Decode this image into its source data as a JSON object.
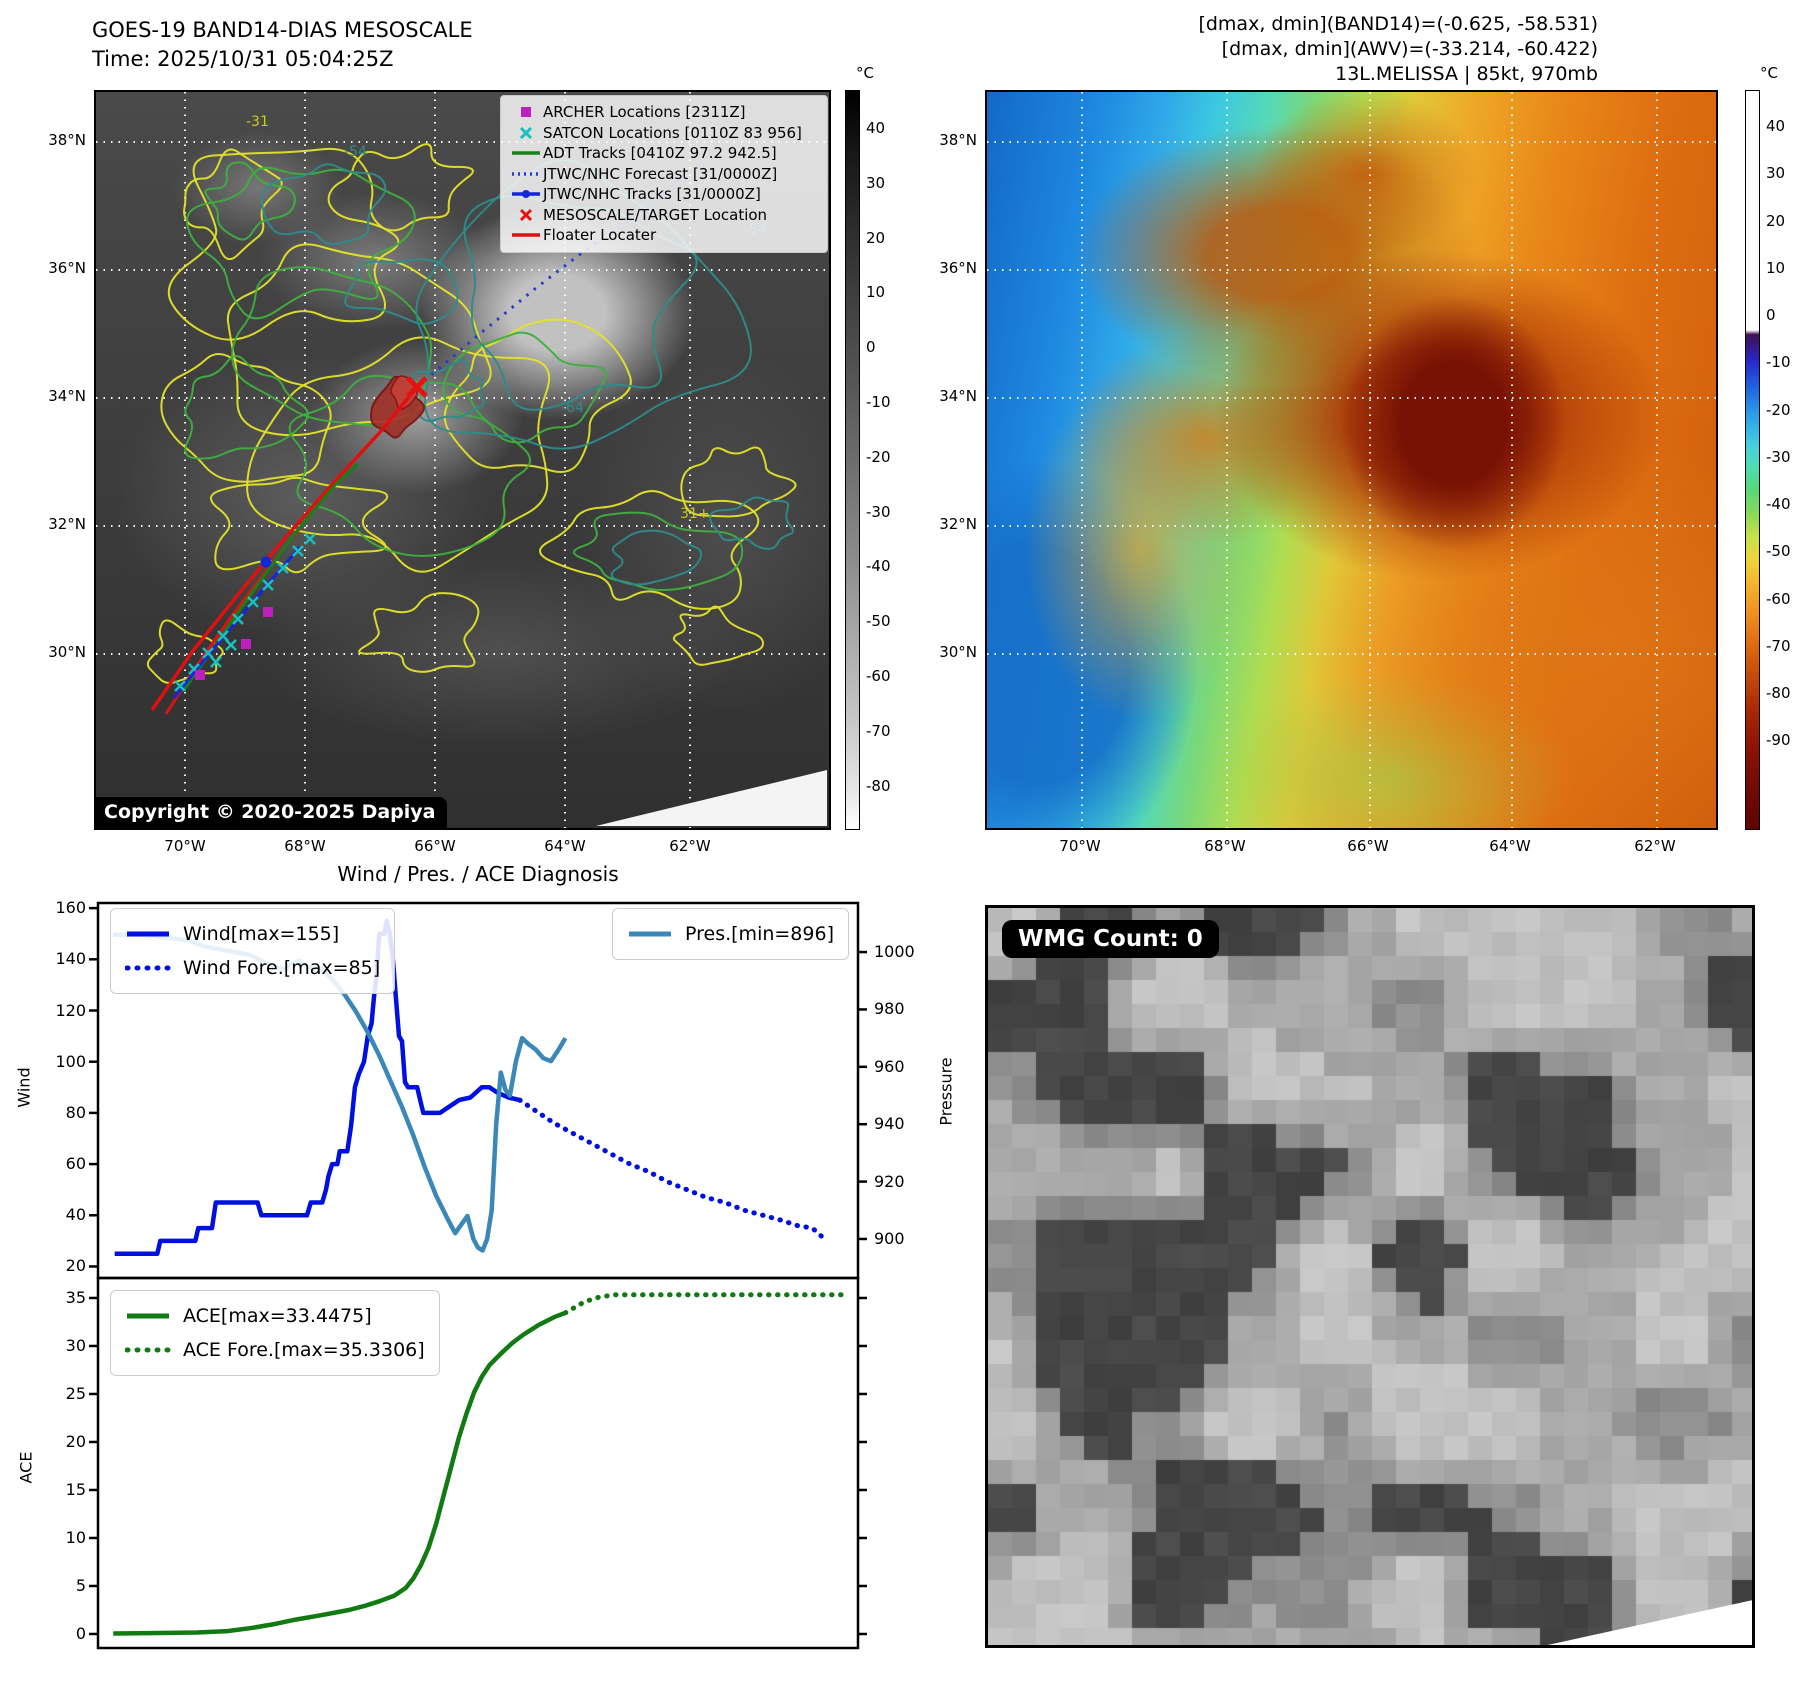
{
  "left_panel": {
    "title_line1": "GOES-19 BAND14-DIAS MESOSCALE",
    "title_line2": "Time: 2025/10/31 05:04:25Z",
    "copyright": "Copyright © 2020-2025 Dapiya",
    "legend": [
      {
        "marker": "square",
        "color": "#bf1fbf",
        "label": "ARCHER Locations [2311Z]"
      },
      {
        "marker": "x",
        "color": "#18c0c0",
        "label": "SATCON Locations [0110Z 83 956]"
      },
      {
        "marker": "line",
        "color": "#188018",
        "label": "ADT Tracks [0410Z 97.2 942.5]"
      },
      {
        "marker": "dotted",
        "color": "#2a3ad0",
        "label": "JTWC/NHC Forecast [31/0000Z]"
      },
      {
        "marker": "line-dot",
        "color": "#1525d8",
        "label": "JTWC/NHC Tracks [31/0000Z]"
      },
      {
        "marker": "x",
        "color": "#e81010",
        "label": "MESOSCALE/TARGET Location"
      },
      {
        "marker": "line",
        "color": "#e01010",
        "label": "Floater Locater"
      }
    ],
    "lat_labels": [
      "38°N",
      "36°N",
      "34°N",
      "32°N",
      "30°N"
    ],
    "lon_labels": [
      "70°W",
      "68°W",
      "66°W",
      "64°W",
      "62°W"
    ],
    "colorbar": {
      "unit": "°C",
      "ticks": [
        40,
        30,
        20,
        10,
        0,
        -10,
        -20,
        -30,
        -40,
        -50,
        -60,
        -70,
        -80
      ]
    },
    "contour_labels": [
      "-31",
      "-54",
      "-54",
      "-64",
      "31+"
    ]
  },
  "right_panel": {
    "header_line1": "[dmax, dmin](BAND14)=(-0.625, -58.531)",
    "header_line2": "[dmax, dmin](AWV)=(-33.214, -60.422)",
    "header_line3": "13L.MELISSA | 85kt, 970mb",
    "lat_labels": [
      "38°N",
      "36°N",
      "34°N",
      "32°N",
      "30°N"
    ],
    "lon_labels": [
      "70°W",
      "68°W",
      "66°W",
      "64°W",
      "62°W"
    ],
    "colorbar": {
      "unit": "°C",
      "ticks": [
        40,
        30,
        20,
        10,
        0,
        -10,
        -20,
        -30,
        -40,
        -50,
        -60,
        -70,
        -80,
        -90
      ]
    }
  },
  "wmg_panel": {
    "label": "WMG Count: 0"
  },
  "charts": {
    "title": "Wind / Pres. / ACE Diagnosis",
    "wind_label": "Wind",
    "pressure_label": "Pressure",
    "ace_label": "ACE"
  },
  "chart_data": [
    {
      "type": "line",
      "subplot": "wind-pressure",
      "title": "Wind / Pres. / ACE Diagnosis",
      "ylabel_left": "Wind",
      "ylabel_right": "Pressure",
      "yticks_left": [
        160,
        140,
        120,
        100,
        80,
        60,
        40,
        20
      ],
      "yticks_right": [
        1000,
        980,
        960,
        940,
        920,
        900
      ],
      "ylim_left": [
        15.5,
        162
      ],
      "ylim_right": [
        886.4,
        1017.1
      ],
      "series": [
        {
          "name": "Wind[max=155]",
          "style": "solid",
          "color": "#0010e0",
          "axis": "left",
          "points": [
            [
              0.022,
              25
            ],
            [
              0.078,
              25
            ],
            [
              0.082,
              30
            ],
            [
              0.128,
              30
            ],
            [
              0.132,
              35
            ],
            [
              0.15,
              35
            ],
            [
              0.155,
              45
            ],
            [
              0.21,
              45
            ],
            [
              0.215,
              40
            ],
            [
              0.275,
              40
            ],
            [
              0.28,
              45
            ],
            [
              0.295,
              45
            ],
            [
              0.3,
              50
            ],
            [
              0.303,
              55
            ],
            [
              0.308,
              60
            ],
            [
              0.315,
              60
            ],
            [
              0.318,
              65
            ],
            [
              0.328,
              65
            ],
            [
              0.333,
              75
            ],
            [
              0.338,
              90
            ],
            [
              0.343,
              95
            ],
            [
              0.35,
              100
            ],
            [
              0.355,
              110
            ],
            [
              0.36,
              115
            ],
            [
              0.363,
              125
            ],
            [
              0.367,
              135
            ],
            [
              0.37,
              150
            ],
            [
              0.377,
              150
            ],
            [
              0.38,
              155
            ],
            [
              0.384,
              150
            ],
            [
              0.388,
              140
            ],
            [
              0.392,
              125
            ],
            [
              0.396,
              110
            ],
            [
              0.4,
              108
            ],
            [
              0.404,
              92
            ],
            [
              0.408,
              90
            ],
            [
              0.42,
              90
            ],
            [
              0.424,
              85
            ],
            [
              0.428,
              80
            ],
            [
              0.45,
              80
            ],
            [
              0.46,
              82
            ],
            [
              0.475,
              85
            ],
            [
              0.49,
              86
            ],
            [
              0.505,
              90
            ],
            [
              0.515,
              90
            ],
            [
              0.525,
              88
            ],
            [
              0.54,
              86
            ],
            [
              0.555,
              85
            ]
          ]
        },
        {
          "name": "Wind Fore.[max=85]",
          "style": "dotted",
          "color": "#0010e0",
          "axis": "left",
          "points": [
            [
              0.555,
              85
            ],
            [
              0.58,
              80
            ],
            [
              0.6,
              76
            ],
            [
              0.625,
              72
            ],
            [
              0.65,
              68
            ],
            [
              0.675,
              64
            ],
            [
              0.7,
              60
            ],
            [
              0.725,
              57
            ],
            [
              0.75,
              53
            ],
            [
              0.775,
              50
            ],
            [
              0.8,
              47
            ],
            [
              0.825,
              45
            ],
            [
              0.85,
              42
            ],
            [
              0.875,
              40
            ],
            [
              0.9,
              38
            ],
            [
              0.92,
              36
            ],
            [
              0.94,
              35
            ],
            [
              0.955,
              31
            ]
          ]
        },
        {
          "name": "Pres.[min=896]",
          "style": "solid",
          "color": "#3b87b8",
          "axis": "right",
          "points": [
            [
              0.02,
              1006
            ],
            [
              0.06,
              1006
            ],
            [
              0.09,
              1005
            ],
            [
              0.12,
              1004
            ],
            [
              0.14,
              1002
            ],
            [
              0.16,
              1001
            ],
            [
              0.18,
              1000
            ],
            [
              0.2,
              999
            ],
            [
              0.215,
              997
            ],
            [
              0.23,
              995
            ],
            [
              0.245,
              994
            ],
            [
              0.255,
              996
            ],
            [
              0.265,
              997
            ],
            [
              0.275,
              995
            ],
            [
              0.285,
              994
            ],
            [
              0.295,
              994
            ],
            [
              0.31,
              990
            ],
            [
              0.325,
              985
            ],
            [
              0.34,
              979
            ],
            [
              0.355,
              972
            ],
            [
              0.37,
              964
            ],
            [
              0.385,
              955
            ],
            [
              0.4,
              946
            ],
            [
              0.415,
              936
            ],
            [
              0.43,
              925
            ],
            [
              0.445,
              915
            ],
            [
              0.46,
              907
            ],
            [
              0.47,
              902
            ],
            [
              0.478,
              905
            ],
            [
              0.486,
              908
            ],
            [
              0.494,
              900
            ],
            [
              0.5,
              897
            ],
            [
              0.506,
              896
            ],
            [
              0.512,
              900
            ],
            [
              0.518,
              910
            ],
            [
              0.524,
              940
            ],
            [
              0.53,
              958
            ],
            [
              0.536,
              952
            ],
            [
              0.542,
              950
            ],
            [
              0.55,
              962
            ],
            [
              0.558,
              970
            ],
            [
              0.566,
              968
            ],
            [
              0.576,
              966
            ],
            [
              0.586,
              963
            ],
            [
              0.596,
              962
            ],
            [
              0.606,
              966
            ],
            [
              0.615,
              970
            ]
          ]
        }
      ]
    },
    {
      "type": "line",
      "subplot": "ace",
      "ylabel_left": "ACE",
      "yticks_left": [
        35,
        30,
        25,
        20,
        15,
        10,
        5,
        0
      ],
      "ylim_left": [
        -1.46,
        37.08
      ],
      "series": [
        {
          "name": "ACE[max=33.4475]",
          "style": "solid",
          "color": "#127a12",
          "axis": "left",
          "points": [
            [
              0.02,
              0.05
            ],
            [
              0.08,
              0.1
            ],
            [
              0.13,
              0.15
            ],
            [
              0.17,
              0.3
            ],
            [
              0.2,
              0.6
            ],
            [
              0.23,
              1.0
            ],
            [
              0.26,
              1.5
            ],
            [
              0.29,
              1.9
            ],
            [
              0.31,
              2.2
            ],
            [
              0.33,
              2.5
            ],
            [
              0.35,
              2.9
            ],
            [
              0.37,
              3.4
            ],
            [
              0.39,
              4.0
            ],
            [
              0.405,
              4.8
            ],
            [
              0.415,
              5.8
            ],
            [
              0.425,
              7.2
            ],
            [
              0.435,
              9.0
            ],
            [
              0.445,
              11.5
            ],
            [
              0.455,
              14.5
            ],
            [
              0.465,
              17.5
            ],
            [
              0.475,
              20.5
            ],
            [
              0.485,
              23.0
            ],
            [
              0.495,
              25.2
            ],
            [
              0.505,
              26.8
            ],
            [
              0.515,
              28.0
            ],
            [
              0.53,
              29.2
            ],
            [
              0.545,
              30.3
            ],
            [
              0.56,
              31.2
            ],
            [
              0.58,
              32.2
            ],
            [
              0.6,
              33.0
            ],
            [
              0.615,
              33.45
            ]
          ]
        },
        {
          "name": "ACE Fore.[max=35.3306]",
          "style": "dotted",
          "color": "#127a12",
          "axis": "left",
          "points": [
            [
              0.615,
              33.45
            ],
            [
              0.64,
              34.6
            ],
            [
              0.66,
              35.1
            ],
            [
              0.68,
              35.33
            ],
            [
              0.72,
              35.33
            ],
            [
              0.78,
              35.33
            ],
            [
              0.85,
              35.33
            ],
            [
              0.92,
              35.33
            ],
            [
              0.985,
              35.33
            ]
          ]
        }
      ]
    }
  ]
}
